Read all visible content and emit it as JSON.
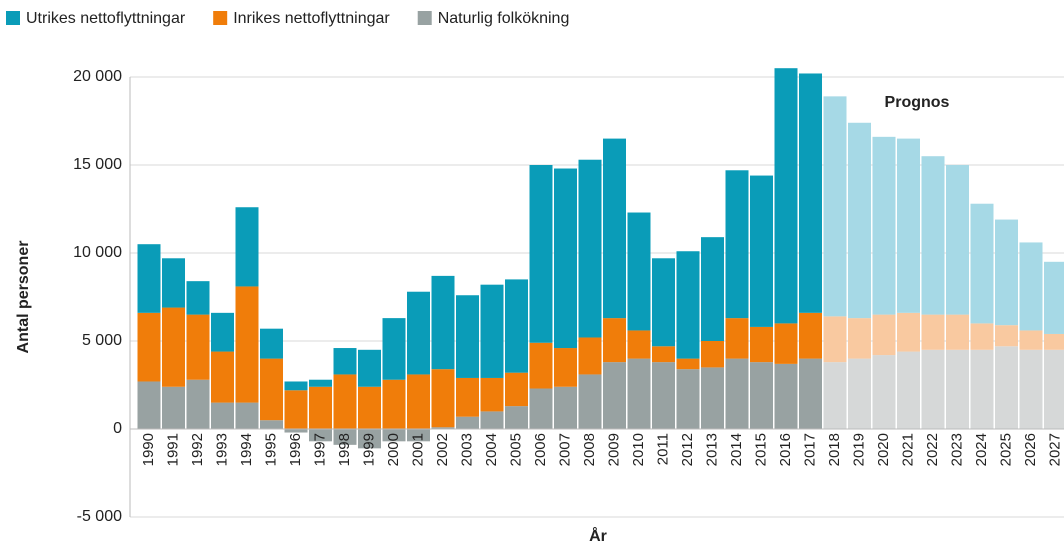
{
  "chart_data": {
    "type": "stacked_bar",
    "categories": [
      "1990",
      "1991",
      "1992",
      "1993",
      "1994",
      "1995",
      "1996",
      "1997",
      "1998",
      "1999",
      "2000",
      "2001",
      "2002",
      "2003",
      "2004",
      "2005",
      "2006",
      "2007",
      "2008",
      "2009",
      "2010",
      "2011",
      "2012",
      "2013",
      "2014",
      "2015",
      "2016",
      "2017",
      "2018",
      "2019",
      "2020",
      "2021",
      "2022",
      "2023",
      "2024",
      "2025",
      "2026",
      "2027"
    ],
    "series": [
      {
        "name": "Utrikes nettoflyttningar",
        "color": "#0a9cb8",
        "forecast_color": "#a6d9e6",
        "values": [
          3900,
          2800,
          1900,
          2200,
          4500,
          1700,
          500,
          400,
          1500,
          2100,
          3500,
          4700,
          5300,
          4700,
          5300,
          5300,
          10100,
          10200,
          10100,
          10200,
          6700,
          5000,
          6100,
          5900,
          8400,
          8600,
          14500,
          13600,
          12500,
          11100,
          10100,
          9900,
          9000,
          8500,
          6800,
          6000,
          5000,
          4100
        ]
      },
      {
        "name": "Inrikes nettoflyttningar",
        "color": "#f07d0a",
        "forecast_color": "#f9c9a0",
        "values": [
          3900,
          4500,
          3700,
          2900,
          6600,
          3500,
          2200,
          2400,
          3100,
          2400,
          2800,
          3100,
          3300,
          2200,
          1900,
          1900,
          2600,
          2200,
          2100,
          2500,
          1600,
          900,
          600,
          1500,
          2300,
          2000,
          2300,
          2600,
          2600,
          2300,
          2300,
          2200,
          2000,
          2000,
          1500,
          1200,
          1100,
          900
        ]
      },
      {
        "name": "Naturlig folkökning",
        "color": "#98a2a2",
        "forecast_color": "#d6d8d8",
        "values": [
          2700,
          2400,
          2800,
          1500,
          1500,
          500,
          -200,
          -700,
          -900,
          -1100,
          -700,
          -700,
          100,
          700,
          1000,
          1300,
          2300,
          2400,
          3100,
          3800,
          4000,
          3800,
          3400,
          3500,
          4000,
          3800,
          3700,
          4000,
          3800,
          4000,
          4200,
          4400,
          4500,
          4500,
          4500,
          4700,
          4500,
          4500
        ]
      }
    ],
    "forecast_from": "2018",
    "annotation": "Prognos",
    "ylabel": "Antal personer",
    "xlabel": "År",
    "ylim": [
      -5000,
      20000
    ],
    "yticks": [
      {
        "value": -5000,
        "label": "-5 000"
      },
      0,
      {
        "value": 5000,
        "label": "5 000"
      },
      {
        "value": 10000,
        "label": "10 000"
      },
      {
        "value": 15000,
        "label": "15 000"
      },
      {
        "value": 20000,
        "label": "20 000"
      }
    ],
    "grid": true,
    "legend": "top"
  }
}
